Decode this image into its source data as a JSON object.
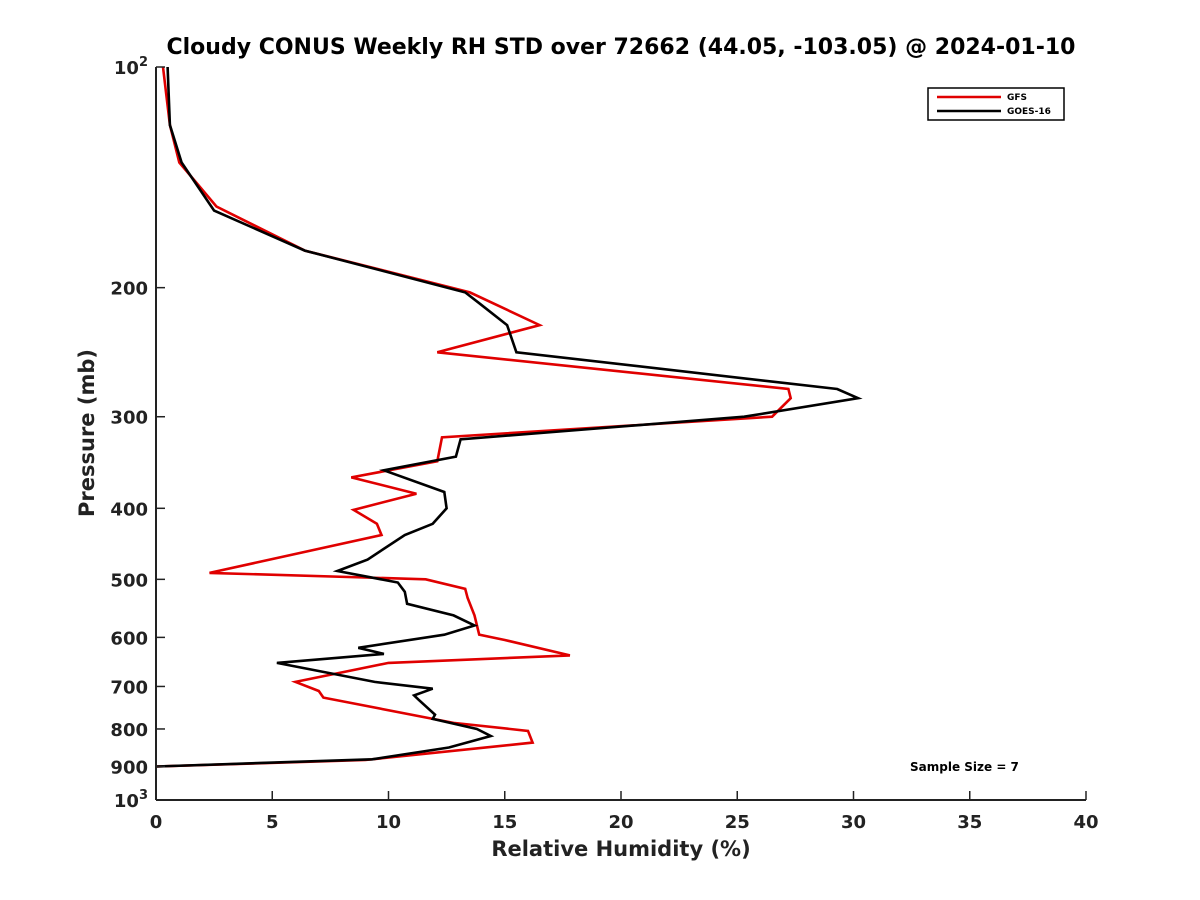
{
  "chart_data": {
    "type": "line",
    "title": "Cloudy CONUS Weekly RH STD over 72662 (44.05, -103.05) @ 2024-01-10",
    "xlabel": "Relative Humidity (%)",
    "ylabel": "Pressure (mb)",
    "xlim": [
      0,
      40
    ],
    "ylim": [
      100,
      1000
    ],
    "y_scale": "log",
    "y_reversed": true,
    "grid": false,
    "legend_position": "top-right",
    "x_ticks": [
      "0",
      "5",
      "10",
      "15",
      "20",
      "25",
      "30",
      "35",
      "40"
    ],
    "y_ticks": [
      {
        "value": 100,
        "base": "10",
        "exp": "2"
      },
      {
        "value": 200,
        "label": "200"
      },
      {
        "value": 300,
        "label": "300"
      },
      {
        "value": 400,
        "label": "400"
      },
      {
        "value": 500,
        "label": "500"
      },
      {
        "value": 600,
        "label": "600"
      },
      {
        "value": 700,
        "label": "700"
      },
      {
        "value": 800,
        "label": "800"
      },
      {
        "value": 900,
        "label": "900"
      },
      {
        "value": 1000,
        "base": "10",
        "exp": "3"
      }
    ],
    "annotation": "Sample Size = 7",
    "series": [
      {
        "name": "GFS",
        "color": "#e00000",
        "points": [
          [
            0.3,
            100
          ],
          [
            0.6,
            120
          ],
          [
            1.0,
            135
          ],
          [
            2.6,
            155
          ],
          [
            6.4,
            178
          ],
          [
            13.5,
            203
          ],
          [
            16.5,
            225
          ],
          [
            12.1,
            245
          ],
          [
            27.2,
            275
          ],
          [
            27.3,
            283
          ],
          [
            26.5,
            300
          ],
          [
            12.3,
            320
          ],
          [
            12.1,
            345
          ],
          [
            8.4,
            363
          ],
          [
            11.2,
            382
          ],
          [
            8.5,
            402
          ],
          [
            9.5,
            420
          ],
          [
            9.7,
            435
          ],
          [
            2.3,
            490
          ],
          [
            11.6,
            500
          ],
          [
            13.3,
            515
          ],
          [
            13.4,
            530
          ],
          [
            13.7,
            560
          ],
          [
            13.9,
            595
          ],
          [
            15.0,
            605
          ],
          [
            17.8,
            635
          ],
          [
            10.0,
            650
          ],
          [
            6.0,
            690
          ],
          [
            7.0,
            710
          ],
          [
            7.2,
            725
          ],
          [
            12.8,
            785
          ],
          [
            16.0,
            805
          ],
          [
            16.2,
            835
          ],
          [
            9.0,
            882
          ],
          [
            0.0,
            900
          ]
        ]
      },
      {
        "name": "GOES-16",
        "color": "#000000",
        "points": [
          [
            0.5,
            100
          ],
          [
            0.6,
            120
          ],
          [
            1.1,
            135
          ],
          [
            2.5,
            157
          ],
          [
            6.4,
            178
          ],
          [
            13.3,
            203
          ],
          [
            13.9,
            210
          ],
          [
            15.1,
            225
          ],
          [
            15.5,
            245
          ],
          [
            29.3,
            275
          ],
          [
            30.2,
            283
          ],
          [
            25.3,
            300
          ],
          [
            13.1,
            322
          ],
          [
            12.9,
            340
          ],
          [
            9.8,
            355
          ],
          [
            12.4,
            380
          ],
          [
            12.5,
            400
          ],
          [
            11.9,
            420
          ],
          [
            10.7,
            435
          ],
          [
            9.1,
            470
          ],
          [
            7.8,
            487
          ],
          [
            10.4,
            505
          ],
          [
            10.7,
            520
          ],
          [
            10.8,
            540
          ],
          [
            12.8,
            560
          ],
          [
            13.7,
            578
          ],
          [
            12.4,
            595
          ],
          [
            8.7,
            620
          ],
          [
            9.8,
            632
          ],
          [
            5.2,
            650
          ],
          [
            9.4,
            690
          ],
          [
            11.9,
            705
          ],
          [
            11.1,
            720
          ],
          [
            11.3,
            730
          ],
          [
            12.0,
            765
          ],
          [
            11.9,
            775
          ],
          [
            13.8,
            800
          ],
          [
            14.4,
            818
          ],
          [
            12.6,
            848
          ],
          [
            9.3,
            880
          ],
          [
            0.0,
            900
          ]
        ]
      }
    ]
  }
}
